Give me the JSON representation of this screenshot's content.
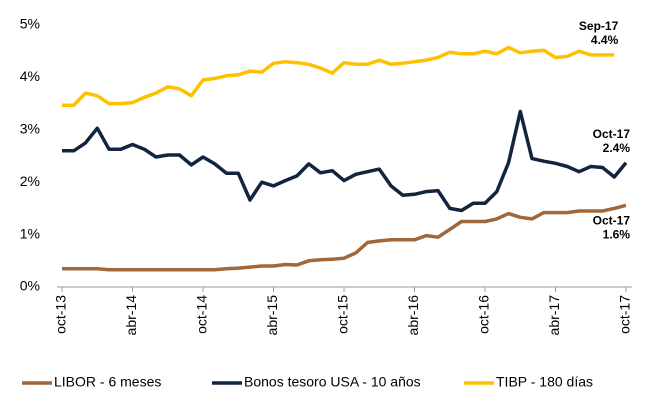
{
  "chart_data": {
    "type": "line",
    "categories": [
      "oct-13",
      null,
      null,
      null,
      null,
      null,
      "abr-14",
      null,
      null,
      null,
      null,
      null,
      "oct-14",
      null,
      null,
      null,
      null,
      null,
      "abr-15",
      null,
      null,
      null,
      null,
      null,
      "oct-15",
      null,
      null,
      null,
      null,
      null,
      "abr-16",
      null,
      null,
      null,
      null,
      null,
      "oct-16",
      null,
      null,
      null,
      null,
      null,
      "abr-17",
      null,
      null,
      null,
      null,
      null,
      "oct-17"
    ],
    "series": [
      {
        "name": "LIBOR - 6 meses",
        "color": "#a0673a",
        "values": [
          0.35,
          0.35,
          0.35,
          0.35,
          0.33,
          0.33,
          0.33,
          0.33,
          0.33,
          0.33,
          0.33,
          0.33,
          0.33,
          0.33,
          0.35,
          0.36,
          0.38,
          0.4,
          0.4,
          0.43,
          0.42,
          0.5,
          0.52,
          0.53,
          0.55,
          0.65,
          0.85,
          0.88,
          0.9,
          0.9,
          0.9,
          0.98,
          0.95,
          1.1,
          1.25,
          1.25,
          1.25,
          1.3,
          1.4,
          1.33,
          1.3,
          1.42,
          1.42,
          1.42,
          1.45,
          1.45,
          1.45,
          1.5,
          1.56
        ]
      },
      {
        "name": "Bonos tesoro USA - 10 años",
        "color": "#13243f",
        "values": [
          2.6,
          2.6,
          2.75,
          3.03,
          2.63,
          2.63,
          2.72,
          2.63,
          2.48,
          2.52,
          2.52,
          2.33,
          2.48,
          2.35,
          2.17,
          2.17,
          1.66,
          2.0,
          1.93,
          2.03,
          2.12,
          2.35,
          2.18,
          2.22,
          2.03,
          2.15,
          2.2,
          2.25,
          1.93,
          1.75,
          1.77,
          1.82,
          1.84,
          1.5,
          1.46,
          1.6,
          1.6,
          1.82,
          2.37,
          3.35,
          2.45,
          2.4,
          2.36,
          2.3,
          2.2,
          2.3,
          2.28,
          2.1,
          2.37
        ]
      },
      {
        "name": "TIBP - 180 días",
        "color": "#ffc000",
        "values": [
          3.47,
          3.47,
          3.7,
          3.65,
          3.5,
          3.5,
          3.52,
          3.62,
          3.7,
          3.82,
          3.78,
          3.65,
          3.95,
          3.98,
          4.03,
          4.05,
          4.12,
          4.1,
          4.27,
          4.3,
          4.28,
          4.25,
          4.18,
          4.08,
          4.28,
          4.25,
          4.25,
          4.33,
          4.25,
          4.27,
          4.3,
          4.33,
          4.38,
          4.48,
          4.45,
          4.45,
          4.5,
          4.45,
          4.57,
          4.47,
          4.5,
          4.52,
          4.38,
          4.4,
          4.5,
          4.43,
          4.43,
          4.43,
          null
        ]
      }
    ],
    "annotations": [
      {
        "date": "Oct-17",
        "text": "1.6%"
      },
      {
        "date": "Oct-17",
        "text": "2.4%"
      },
      {
        "date": "Sep-17",
        "text": "4.4%"
      }
    ],
    "ylim": [
      0,
      5
    ],
    "yticks": [
      {
        "value": 0,
        "label": "0%"
      },
      {
        "value": 1,
        "label": "1%"
      },
      {
        "value": 2,
        "label": "2%"
      },
      {
        "value": 3,
        "label": "3%"
      },
      {
        "value": 4,
        "label": "4%"
      },
      {
        "value": 5,
        "label": "5%"
      }
    ],
    "grid": false,
    "legend": "bottom"
  }
}
